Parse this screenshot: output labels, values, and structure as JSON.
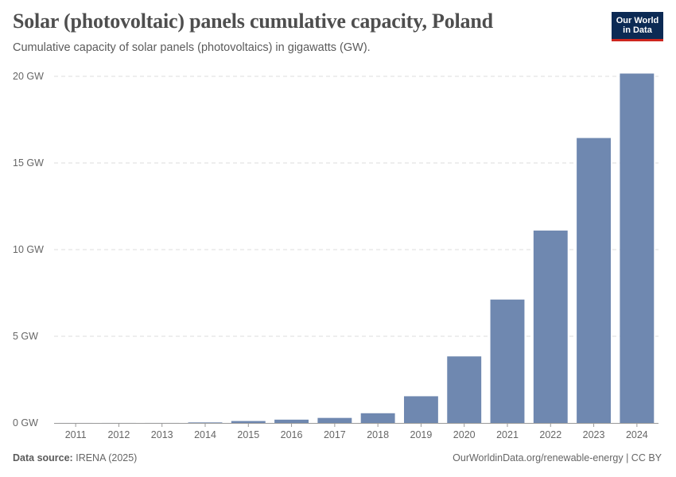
{
  "header": {
    "title": "Solar (photovoltaic) panels cumulative capacity, Poland",
    "subtitle": "Cumulative capacity of solar panels (photovoltaics) in gigawatts (GW)."
  },
  "logo": {
    "line1": "Our World",
    "line2": "in Data"
  },
  "footer": {
    "source_label": "Data source:",
    "source_value": "IRENA (2025)",
    "credit": "OurWorldinData.org/renewable-energy | CC BY"
  },
  "colors": {
    "bar": "#6f88b0",
    "grid": "#dddddd",
    "axis": "#999999"
  },
  "chart_data": {
    "type": "bar",
    "title": "Solar (photovoltaic) panels cumulative capacity, Poland",
    "xlabel": "",
    "ylabel": "GW",
    "ylim": [
      0,
      20
    ],
    "yticks": [
      0,
      5,
      10,
      15,
      20
    ],
    "ytick_labels": [
      "0 GW",
      "5 GW",
      "10 GW",
      "15 GW",
      "20 GW"
    ],
    "categories": [
      "2011",
      "2012",
      "2013",
      "2014",
      "2015",
      "2016",
      "2017",
      "2018",
      "2019",
      "2020",
      "2021",
      "2022",
      "2023",
      "2024"
    ],
    "values": [
      0.001,
      0.002,
      0.002,
      0.03,
      0.11,
      0.19,
      0.29,
      0.56,
      1.54,
      3.84,
      7.12,
      11.1,
      16.44,
      20.16
    ],
    "grid": true
  }
}
